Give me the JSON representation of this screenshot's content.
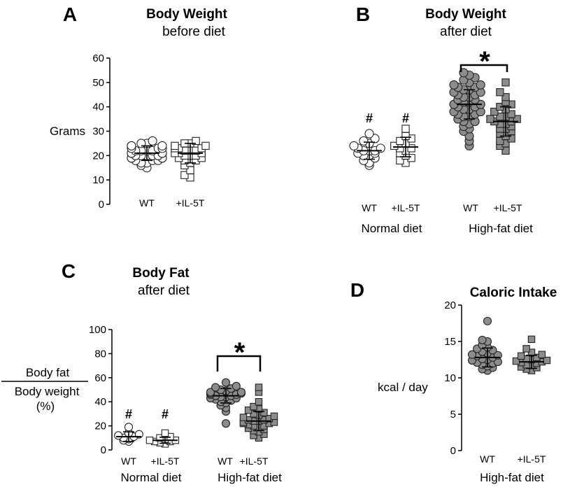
{
  "colors": {
    "filled": "#8c8c8c",
    "open": "#ffffff",
    "stroke": "#222222"
  },
  "chart_data": [
    {
      "panel": "A",
      "type": "scatter",
      "title": "Body Weight",
      "subtitle": "before diet",
      "ylabel": "Grams",
      "ylim": [
        0,
        60
      ],
      "yticks": [
        "0",
        "10",
        "20",
        "30",
        "40",
        "50",
        "60"
      ],
      "categories": [
        "WT",
        "+IL-5T"
      ],
      "group_labels": [],
      "significance": {
        "label": "",
        "between": []
      },
      "series": [
        {
          "category": "WT",
          "marker": "circle",
          "fill": "open",
          "mean": 21,
          "sd": 3,
          "values": [
            15,
            16,
            17,
            17,
            18,
            18,
            18,
            19,
            19,
            19,
            19,
            20,
            20,
            20,
            20,
            20,
            21,
            21,
            21,
            21,
            21,
            21,
            22,
            22,
            22,
            22,
            23,
            23,
            23,
            24,
            24,
            24,
            25,
            25,
            26
          ]
        },
        {
          "category": "+IL-5T",
          "marker": "square",
          "fill": "open",
          "mean": 21,
          "sd": 4,
          "values": [
            11,
            12,
            14,
            16,
            17,
            18,
            18,
            19,
            19,
            20,
            20,
            20,
            21,
            21,
            21,
            22,
            22,
            22,
            23,
            23,
            23,
            24,
            24,
            25,
            25,
            26
          ]
        }
      ]
    },
    {
      "panel": "B",
      "type": "scatter",
      "title": "Body Weight",
      "subtitle": "after diet",
      "ylabel": "",
      "ylim": [
        0,
        60
      ],
      "yticks": [],
      "categories": [
        "WT",
        "+IL-5T",
        "WT",
        "+IL-5T"
      ],
      "group_labels": [
        "Normal diet",
        "High-fat diet"
      ],
      "significance": {
        "label": "*",
        "between": [
          2,
          3
        ]
      },
      "series": [
        {
          "category": "WT",
          "group": "Normal diet",
          "marker": "circle",
          "fill": "open",
          "mean": 22,
          "sd": 3.5,
          "annotation": "#",
          "values": [
            16,
            17,
            18,
            19,
            20,
            20,
            21,
            21,
            22,
            22,
            22,
            23,
            23,
            24,
            25,
            26,
            27,
            29
          ]
        },
        {
          "category": "+IL-5T",
          "group": "Normal diet",
          "marker": "square",
          "fill": "open",
          "mean": 23.5,
          "sd": 4,
          "annotation": "#",
          "values": [
            17,
            18,
            19,
            20,
            21,
            22,
            23,
            23,
            24,
            25,
            26,
            27,
            28,
            31
          ]
        },
        {
          "category": "WT",
          "group": "High-fat diet",
          "marker": "circle",
          "fill": "filled",
          "mean": 41,
          "sd": 6,
          "values": [
            24,
            26,
            28,
            30,
            31,
            32,
            33,
            34,
            34,
            35,
            36,
            36,
            37,
            37,
            38,
            38,
            39,
            39,
            40,
            40,
            41,
            41,
            42,
            42,
            43,
            43,
            44,
            44,
            45,
            45,
            46,
            46,
            47,
            47,
            48,
            48,
            49,
            49,
            50,
            51,
            52,
            53,
            54
          ]
        },
        {
          "category": "+IL-5T",
          "group": "High-fat diet",
          "marker": "square",
          "fill": "filled",
          "mean": 34,
          "sd": 6,
          "values": [
            22,
            24,
            25,
            26,
            27,
            28,
            29,
            30,
            31,
            31,
            32,
            33,
            33,
            34,
            34,
            35,
            35,
            36,
            36,
            37,
            38,
            39,
            40,
            41,
            42,
            44,
            46,
            50
          ]
        }
      ]
    },
    {
      "panel": "C",
      "type": "scatter",
      "title": "Body Fat",
      "subtitle": "after diet",
      "ylabel_top": "Body fat",
      "ylabel_bottom": "Body weight",
      "ylabel_unit": "(%)",
      "ylim": [
        0,
        100
      ],
      "yticks": [
        "0",
        "20",
        "40",
        "60",
        "80",
        "100"
      ],
      "categories": [
        "WT",
        "+IL-5T",
        "WT",
        "+IL-5T"
      ],
      "group_labels": [
        "Normal diet",
        "High-fat diet"
      ],
      "significance": {
        "label": "*",
        "between": [
          2,
          3
        ]
      },
      "series": [
        {
          "category": "WT",
          "group": "Normal diet",
          "marker": "circle",
          "fill": "open",
          "mean": 11,
          "sd": 4,
          "annotation": "#",
          "values": [
            7,
            8,
            9,
            10,
            11,
            12,
            13,
            14,
            19
          ]
        },
        {
          "category": "+IL-5T",
          "group": "Normal diet",
          "marker": "square",
          "fill": "open",
          "mean": 8,
          "sd": 2.5,
          "annotation": "#",
          "values": [
            5,
            6,
            7,
            7,
            8,
            8,
            9,
            10,
            11,
            14
          ]
        },
        {
          "category": "WT",
          "group": "High-fat diet",
          "marker": "circle",
          "fill": "filled",
          "mean": 45,
          "sd": 6,
          "values": [
            22,
            32,
            35,
            37,
            39,
            40,
            41,
            42,
            43,
            43,
            44,
            44,
            45,
            45,
            46,
            46,
            47,
            47,
            48,
            48,
            49,
            50,
            51,
            52,
            53,
            56
          ]
        },
        {
          "category": "+IL-5T",
          "group": "High-fat diet",
          "marker": "square",
          "fill": "filled",
          "mean": 24,
          "sd": 8,
          "values": [
            10,
            12,
            13,
            15,
            16,
            17,
            18,
            19,
            20,
            20,
            21,
            22,
            22,
            23,
            23,
            24,
            24,
            25,
            25,
            26,
            27,
            28,
            29,
            30,
            31,
            33,
            34,
            36,
            40,
            48,
            52
          ]
        }
      ]
    },
    {
      "panel": "D",
      "type": "scatter",
      "title": "Caloric Intake",
      "subtitle": "",
      "ylabel": "kcal / day",
      "ylim": [
        0,
        20
      ],
      "yticks": [
        "0",
        "5",
        "10",
        "15",
        "20"
      ],
      "categories": [
        "WT",
        "+IL-5T"
      ],
      "group_labels": [
        "High-fat diet"
      ],
      "significance": {
        "label": "",
        "between": []
      },
      "series": [
        {
          "category": "WT",
          "group": "High-fat diet",
          "marker": "circle",
          "fill": "filled",
          "mean": 12.8,
          "sd": 1.3,
          "values": [
            11,
            11.2,
            11.4,
            11.6,
            11.8,
            12,
            12.1,
            12.2,
            12.4,
            12.5,
            12.6,
            12.8,
            13,
            13.1,
            13.2,
            13.4,
            13.6,
            13.8,
            14,
            14.2,
            14.5,
            15,
            15.2,
            17.8
          ]
        },
        {
          "category": "+IL-5T",
          "group": "High-fat diet",
          "marker": "square",
          "fill": "filled",
          "mean": 12.2,
          "sd": 0.9,
          "values": [
            11,
            11.2,
            11.4,
            11.5,
            11.7,
            11.8,
            12,
            12.1,
            12.2,
            12.3,
            12.4,
            12.5,
            12.6,
            12.8,
            13,
            13.2,
            13.5,
            14,
            15.3
          ]
        }
      ]
    }
  ]
}
